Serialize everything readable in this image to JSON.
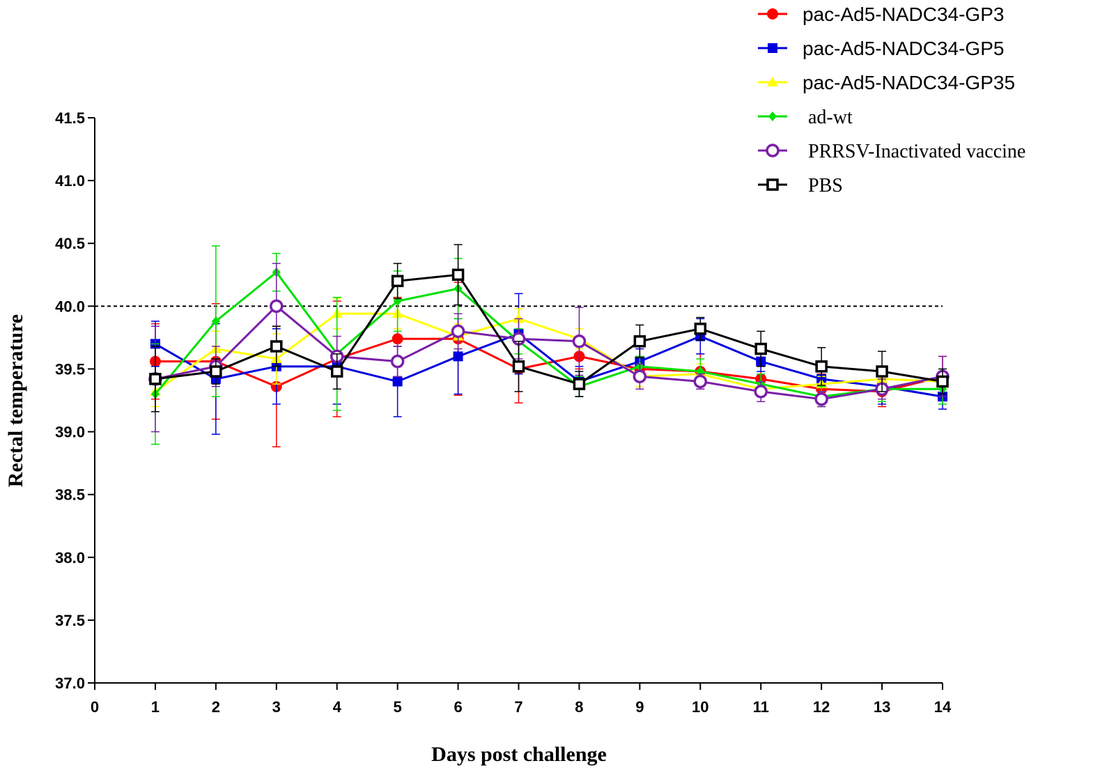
{
  "chart_data": {
    "type": "line",
    "xlabel": "Days post challenge",
    "ylabel": "Rectal temperature",
    "xlim": [
      0,
      14
    ],
    "ylim": [
      37.0,
      41.5
    ],
    "x_ticks": [
      "0",
      "1",
      "2",
      "3",
      "4",
      "5",
      "6",
      "7",
      "8",
      "9",
      "10",
      "11",
      "12",
      "13",
      "14"
    ],
    "y_ticks": [
      "37.0",
      "37.5",
      "38.0",
      "38.5",
      "39.0",
      "39.5",
      "40.0",
      "40.5",
      "41.0",
      "41.5"
    ],
    "reference_line": {
      "y": 40.0,
      "style": "dashed"
    },
    "x": [
      1,
      2,
      3,
      4,
      5,
      6,
      7,
      8,
      9,
      10,
      11,
      12,
      13,
      14
    ],
    "legend_position": "top-right",
    "series": [
      {
        "name": "pac-Ad5-NADC34-GP3",
        "color": "#ff0000",
        "marker": "circle-filled",
        "values": [
          39.56,
          39.56,
          39.36,
          39.58,
          39.74,
          39.74,
          39.5,
          39.6,
          39.5,
          39.48,
          39.42,
          39.34,
          39.32,
          39.44
        ],
        "errors": [
          0.3,
          0.46,
          0.48,
          0.46,
          0.33,
          0.45,
          0.27,
          0.1,
          0.1,
          0.14,
          0.1,
          0.12,
          0.12,
          0.16
        ]
      },
      {
        "name": "pac-Ad5-NADC34-GP5",
        "color": "#0000dd",
        "marker": "square-filled",
        "values": [
          39.7,
          39.42,
          39.52,
          39.52,
          39.4,
          39.6,
          39.78,
          39.4,
          39.56,
          39.76,
          39.56,
          39.42,
          39.36,
          39.28
        ],
        "errors": [
          0.18,
          0.44,
          0.3,
          0.3,
          0.28,
          0.3,
          0.32,
          0.12,
          0.1,
          0.14,
          0.08,
          0.1,
          0.14,
          0.1
        ]
      },
      {
        "name": "pac-Ad5-NADC34-GP35",
        "color": "#ffff00",
        "marker": "triangle-filled",
        "values": [
          39.32,
          39.66,
          39.58,
          39.94,
          39.94,
          39.76,
          39.9,
          39.74,
          39.44,
          39.46,
          39.34,
          39.38,
          39.42,
          39.4
        ],
        "errors": [
          0.12,
          0.14,
          0.2,
          0.12,
          0.12,
          0.1,
          0.08,
          0.08,
          0.08,
          0.08,
          0.06,
          0.06,
          0.06,
          0.06
        ]
      },
      {
        "name": "ad-wt",
        "color": "#00e000",
        "marker": "diamond-filled",
        "values": [
          39.3,
          39.88,
          40.27,
          39.62,
          40.04,
          40.14,
          39.72,
          39.36,
          39.52,
          39.48,
          39.38,
          39.28,
          39.34,
          39.34
        ],
        "errors": [
          0.4,
          0.6,
          0.15,
          0.45,
          0.24,
          0.24,
          0.1,
          0.08,
          0.08,
          0.1,
          0.08,
          0.08,
          0.1,
          0.12
        ]
      },
      {
        "name": "PRRSV-Inactivated vaccine",
        "color": "#7a1fa8",
        "marker": "circle-open",
        "values": [
          39.42,
          39.52,
          40.0,
          39.6,
          39.56,
          39.8,
          39.74,
          39.72,
          39.44,
          39.4,
          39.32,
          39.26,
          39.34,
          39.44
        ],
        "errors": [
          0.42,
          0.16,
          0.34,
          0.16,
          0.12,
          0.14,
          0.16,
          0.27,
          0.1,
          0.06,
          0.08,
          0.06,
          0.08,
          0.16
        ]
      },
      {
        "name": "PBS",
        "color": "#000000",
        "marker": "square-open",
        "values": [
          39.42,
          39.48,
          39.68,
          39.48,
          40.2,
          40.25,
          39.52,
          39.38,
          39.72,
          39.82,
          39.66,
          39.52,
          39.48,
          39.4
        ],
        "errors": [
          0.26,
          0.1,
          0.16,
          0.14,
          0.14,
          0.24,
          0.2,
          0.1,
          0.13,
          0.09,
          0.14,
          0.15,
          0.16,
          0.1
        ]
      }
    ]
  }
}
